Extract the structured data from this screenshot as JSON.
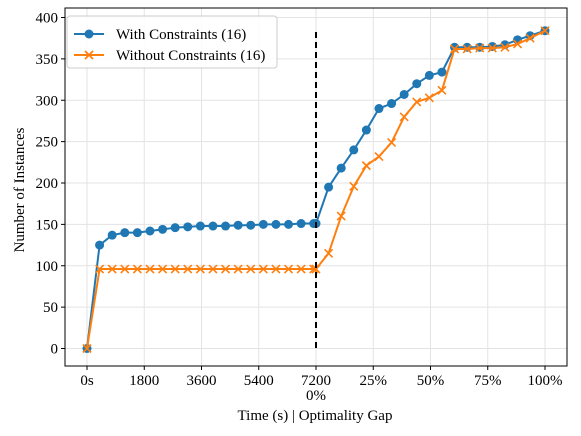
{
  "chart_data": {
    "type": "line",
    "xlabel": "Time (s)  |  Optimality Gap",
    "ylabel": "Number of Instances",
    "ylim": [
      0,
      400
    ],
    "yticks": [
      0,
      50,
      100,
      150,
      200,
      250,
      300,
      350,
      400
    ],
    "xlim": [
      -1.0,
      19.0
    ],
    "xticks": [
      {
        "x": 0,
        "label": "0s"
      },
      {
        "x": 2.5,
        "label": "1800"
      },
      {
        "x": 5.0,
        "label": "3600"
      },
      {
        "x": 7.5,
        "label": "5400"
      },
      {
        "x": 10.0,
        "label": "7200"
      },
      {
        "x": 12.5,
        "label": "25%"
      },
      {
        "x": 15.0,
        "label": "50%"
      },
      {
        "x": 17.5,
        "label": "75%"
      },
      {
        "x": 20.0,
        "label": "100%"
      }
    ],
    "extra_tick_label": {
      "x": 10.0,
      "label": "0%"
    },
    "divider_x": 10.0,
    "grid": true,
    "legend_position": "top-left",
    "series": [
      {
        "name": "With Constraints (16)",
        "color": "#1f77b4",
        "marker": "circle",
        "x": [
          0,
          0.55,
          1.1,
          1.65,
          2.2,
          2.75,
          3.3,
          3.85,
          4.4,
          4.95,
          5.5,
          6.05,
          6.6,
          7.15,
          7.7,
          8.25,
          8.8,
          9.35,
          9.9,
          10.0,
          10.55,
          11.1,
          11.65,
          12.2,
          12.75,
          13.3,
          13.85,
          14.4,
          14.95,
          15.5,
          16.05,
          16.6,
          17.15,
          17.7,
          18.25,
          18.8,
          19.35,
          20.0
        ],
        "y": [
          0,
          125,
          137,
          140,
          140,
          142,
          144,
          146,
          147,
          148,
          148,
          148,
          149,
          149,
          150,
          150,
          150,
          151,
          151,
          151,
          195,
          218,
          240,
          264,
          290,
          296,
          307,
          320,
          330,
          334,
          364,
          364,
          364,
          365,
          367,
          373,
          378,
          384
        ]
      },
      {
        "name": "Without Constraints (16)",
        "color": "#ff7f0e",
        "marker": "x",
        "x": [
          0,
          0.55,
          1.1,
          1.65,
          2.2,
          2.75,
          3.3,
          3.85,
          4.4,
          4.95,
          5.5,
          6.05,
          6.6,
          7.15,
          7.7,
          8.25,
          8.8,
          9.35,
          9.9,
          10.0,
          10.55,
          11.1,
          11.65,
          12.2,
          12.75,
          13.3,
          13.85,
          14.4,
          14.95,
          15.5,
          16.05,
          16.6,
          17.15,
          17.7,
          18.25,
          18.8,
          19.35,
          20.0
        ],
        "y": [
          0,
          96,
          96,
          96,
          96,
          96,
          96,
          96,
          96,
          96,
          96,
          96,
          96,
          96,
          96,
          96,
          96,
          96,
          96,
          96,
          115,
          160,
          196,
          221,
          232,
          249,
          280,
          298,
          303,
          312,
          362,
          362,
          363,
          363,
          364,
          368,
          375,
          384
        ]
      }
    ]
  }
}
